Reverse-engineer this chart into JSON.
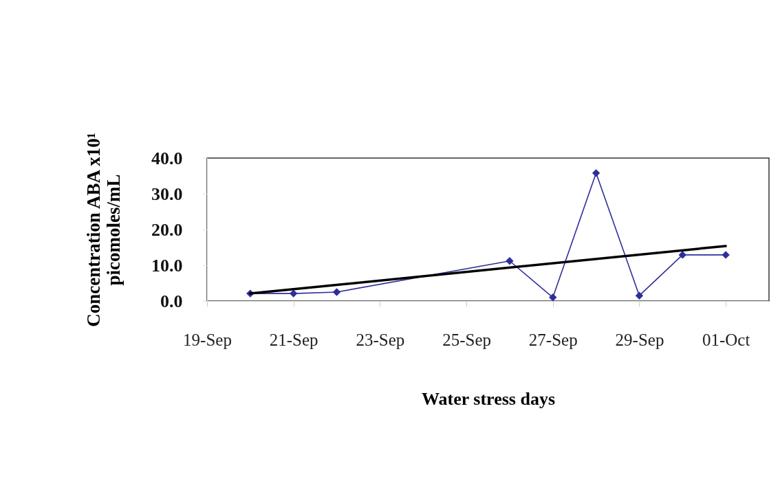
{
  "chart_data": {
    "type": "line",
    "xlabel": "Water stress days",
    "ylabel": "Concentration ABA x10¹\npicomoles/mL",
    "xlim": [
      "--09-19",
      "--10-02"
    ],
    "xticks": [
      {
        "value": "--09-19",
        "label": "19-Sep"
      },
      {
        "value": "--09-21",
        "label": "21-Sep"
      },
      {
        "value": "--09-23",
        "label": "23-Sep"
      },
      {
        "value": "--09-25",
        "label": "25-Sep"
      },
      {
        "value": "--09-27",
        "label": "27-Sep"
      },
      {
        "value": "--09-29",
        "label": "29-Sep"
      },
      {
        "value": "--10-01",
        "label": "01-Oct"
      }
    ],
    "ylim": [
      0,
      40
    ],
    "yticks": [
      {
        "value": 0,
        "label": "0.0"
      },
      {
        "value": 10,
        "label": "10.0"
      },
      {
        "value": 20,
        "label": "20.0"
      },
      {
        "value": 30,
        "label": "30.0"
      },
      {
        "value": 40,
        "label": "40.0"
      }
    ],
    "grid": false,
    "series": [
      {
        "color": "#2e2e9a",
        "marker": "diamond",
        "line_style": "solid",
        "x": [
          "--09-20",
          "--09-21",
          "--09-22",
          "--09-26",
          "--09-27",
          "--09-28",
          "--09-29",
          "--09-30",
          "--10-01"
        ],
        "values": [
          2.1,
          2.1,
          2.5,
          11.2,
          1.0,
          35.8,
          1.5,
          12.9,
          12.9
        ]
      },
      {
        "type": "line",
        "color": "#000000",
        "marker": "none",
        "line_style": "solid",
        "x": [
          "--09-20",
          "--10-01"
        ],
        "values": [
          2.1,
          15.4
        ]
      }
    ]
  }
}
